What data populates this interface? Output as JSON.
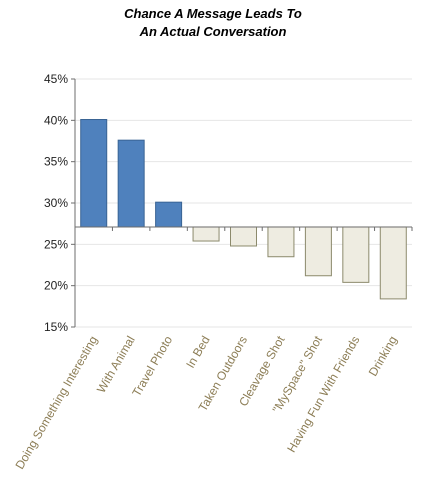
{
  "chart_data": {
    "type": "bar",
    "title_lines": [
      "Chance A  Message Leads To",
      "An Actual Conversation"
    ],
    "categories": [
      "Doing Something Interesting",
      "With Animal",
      "Travel Photo",
      "In Bed",
      "Taken Outdoors",
      "Cleavage Shot",
      "\"MySpace\" Shot",
      "Having Fun With Friends",
      "Drinking"
    ],
    "values": [
      40.1,
      37.6,
      30.1,
      25.4,
      24.8,
      23.5,
      21.2,
      20.4,
      18.4
    ],
    "baseline": 27.1,
    "ylim": [
      15,
      45
    ],
    "yticks": [
      15,
      20,
      25,
      30,
      35,
      40,
      45
    ],
    "ytick_labels": [
      "15%",
      "20%",
      "25%",
      "30%",
      "35%",
      "40%",
      "45%"
    ],
    "grid": true,
    "colors": {
      "above": "#4f81bd",
      "above_edge": "#3a6494",
      "below": "#eeece1",
      "below_edge": "#8c8a6c",
      "label": "#8c7d55",
      "grid": "#e6e6e6",
      "axis": "#6d6d6d"
    }
  }
}
